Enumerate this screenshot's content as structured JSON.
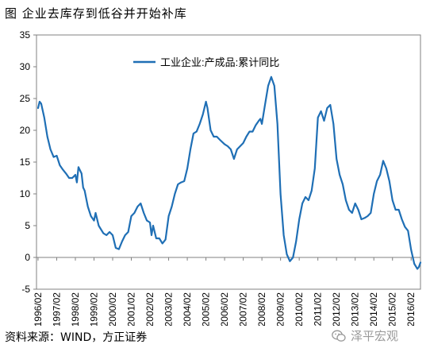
{
  "figure": {
    "title": "图  企业去库存到低谷并开始补库",
    "source": "资料来源：WIND，方正证券",
    "watermark": "泽平宏观"
  },
  "chart_data": {
    "type": "line",
    "legend_position": "top-center",
    "grid": false,
    "ylim": [
      -5,
      35
    ],
    "yticks": [
      "35",
      "30",
      "25",
      "20",
      "15",
      "10",
      "5",
      "0",
      "-5"
    ],
    "ytick_values": [
      35,
      30,
      25,
      20,
      15,
      10,
      5,
      0,
      -5
    ],
    "xticks": [
      "1996/02",
      "1997/02",
      "1998/02",
      "1999/02",
      "2000/02",
      "2001/02",
      "2002/02",
      "2003/02",
      "2004/02",
      "2005/02",
      "2006/02",
      "2007/02",
      "2008/02",
      "2009/02",
      "2010/02",
      "2011/02",
      "2012/02",
      "2013/02",
      "2014/02",
      "2015/02",
      "2016/02"
    ],
    "xlim": [
      "1996-01",
      "2016-08"
    ],
    "colors": {
      "line": "#1f6fb5",
      "axis": "#808080"
    },
    "series": [
      {
        "name": "工业企业:产成品:累计同比",
        "points": [
          [
            "1996-02",
            23.5
          ],
          [
            "1996-03",
            24.5
          ],
          [
            "1996-04",
            24.2
          ],
          [
            "1996-06",
            22.0
          ],
          [
            "1996-08",
            19.0
          ],
          [
            "1996-10",
            17.0
          ],
          [
            "1996-12",
            15.8
          ],
          [
            "1997-02",
            16.0
          ],
          [
            "1997-04",
            14.5
          ],
          [
            "1997-06",
            13.8
          ],
          [
            "1997-08",
            13.2
          ],
          [
            "1997-10",
            12.5
          ],
          [
            "1997-12",
            12.5
          ],
          [
            "1998-02",
            13.0
          ],
          [
            "1998-03",
            11.8
          ],
          [
            "1998-04",
            14.2
          ],
          [
            "1998-06",
            13.2
          ],
          [
            "1998-07",
            11.0
          ],
          [
            "1998-08",
            10.5
          ],
          [
            "1998-10",
            8.0
          ],
          [
            "1998-12",
            6.5
          ],
          [
            "1999-02",
            5.8
          ],
          [
            "1999-03",
            7.0
          ],
          [
            "1999-05",
            5.0
          ],
          [
            "1999-08",
            3.8
          ],
          [
            "1999-10",
            3.5
          ],
          [
            "1999-12",
            4.0
          ],
          [
            "2000-02",
            3.5
          ],
          [
            "2000-04",
            1.5
          ],
          [
            "2000-06",
            1.3
          ],
          [
            "2000-08",
            2.5
          ],
          [
            "2000-10",
            3.5
          ],
          [
            "2000-12",
            4.0
          ],
          [
            "2001-02",
            6.5
          ],
          [
            "2001-04",
            7.0
          ],
          [
            "2001-06",
            8.0
          ],
          [
            "2001-08",
            8.5
          ],
          [
            "2001-10",
            7.0
          ],
          [
            "2001-12",
            5.8
          ],
          [
            "2002-02",
            5.5
          ],
          [
            "2002-03",
            3.5
          ],
          [
            "2002-04",
            5.0
          ],
          [
            "2002-06",
            3.0
          ],
          [
            "2002-08",
            3.0
          ],
          [
            "2002-10",
            2.2
          ],
          [
            "2002-12",
            2.8
          ],
          [
            "2003-02",
            6.5
          ],
          [
            "2003-04",
            8.0
          ],
          [
            "2003-06",
            10.0
          ],
          [
            "2003-08",
            11.5
          ],
          [
            "2003-10",
            11.8
          ],
          [
            "2003-12",
            12.0
          ],
          [
            "2004-02",
            14.0
          ],
          [
            "2004-04",
            17.0
          ],
          [
            "2004-06",
            19.5
          ],
          [
            "2004-08",
            19.8
          ],
          [
            "2004-10",
            21.0
          ],
          [
            "2004-12",
            22.5
          ],
          [
            "2005-02",
            24.5
          ],
          [
            "2005-03",
            23.5
          ],
          [
            "2005-05",
            20.0
          ],
          [
            "2005-07",
            19.0
          ],
          [
            "2005-09",
            19.0
          ],
          [
            "2005-11",
            18.5
          ],
          [
            "2006-02",
            17.8
          ],
          [
            "2006-04",
            17.5
          ],
          [
            "2006-06",
            17.0
          ],
          [
            "2006-08",
            15.5
          ],
          [
            "2006-10",
            17.0
          ],
          [
            "2006-12",
            17.5
          ],
          [
            "2007-02",
            18.0
          ],
          [
            "2007-04",
            19.0
          ],
          [
            "2007-06",
            19.8
          ],
          [
            "2007-08",
            19.8
          ],
          [
            "2007-10",
            20.8
          ],
          [
            "2007-12",
            21.5
          ],
          [
            "2008-01",
            21.8
          ],
          [
            "2008-02",
            21.0
          ],
          [
            "2008-04",
            24.0
          ],
          [
            "2008-06",
            27.0
          ],
          [
            "2008-08",
            28.4
          ],
          [
            "2008-10",
            27.0
          ],
          [
            "2008-12",
            21.0
          ],
          [
            "2009-02",
            10.0
          ],
          [
            "2009-04",
            3.5
          ],
          [
            "2009-06",
            0.5
          ],
          [
            "2009-08",
            -0.6
          ],
          [
            "2009-10",
            0.0
          ],
          [
            "2009-12",
            2.5
          ],
          [
            "2010-02",
            6.0
          ],
          [
            "2010-04",
            8.5
          ],
          [
            "2010-06",
            9.5
          ],
          [
            "2010-08",
            9.0
          ],
          [
            "2010-10",
            10.5
          ],
          [
            "2010-12",
            14.0
          ],
          [
            "2011-02",
            22.0
          ],
          [
            "2011-04",
            23.0
          ],
          [
            "2011-06",
            21.5
          ],
          [
            "2011-08",
            23.5
          ],
          [
            "2011-10",
            24.0
          ],
          [
            "2011-12",
            21.0
          ],
          [
            "2012-02",
            15.5
          ],
          [
            "2012-04",
            13.0
          ],
          [
            "2012-06",
            11.5
          ],
          [
            "2012-08",
            9.0
          ],
          [
            "2012-10",
            7.5
          ],
          [
            "2012-12",
            7.0
          ],
          [
            "2013-02",
            8.5
          ],
          [
            "2013-04",
            7.5
          ],
          [
            "2013-06",
            6.0
          ],
          [
            "2013-08",
            6.2
          ],
          [
            "2013-10",
            6.5
          ],
          [
            "2013-12",
            7.0
          ],
          [
            "2014-02",
            10.0
          ],
          [
            "2014-04",
            12.0
          ],
          [
            "2014-06",
            13.0
          ],
          [
            "2014-08",
            15.2
          ],
          [
            "2014-10",
            14.0
          ],
          [
            "2014-12",
            12.0
          ],
          [
            "2015-02",
            9.0
          ],
          [
            "2015-04",
            7.5
          ],
          [
            "2015-06",
            7.5
          ],
          [
            "2015-08",
            6.0
          ],
          [
            "2015-10",
            4.8
          ],
          [
            "2015-12",
            4.2
          ],
          [
            "2016-02",
            1.2
          ],
          [
            "2016-04",
            -1.0
          ],
          [
            "2016-06",
            -1.8
          ],
          [
            "2016-07",
            -1.5
          ],
          [
            "2016-08",
            -0.8
          ]
        ]
      }
    ]
  }
}
